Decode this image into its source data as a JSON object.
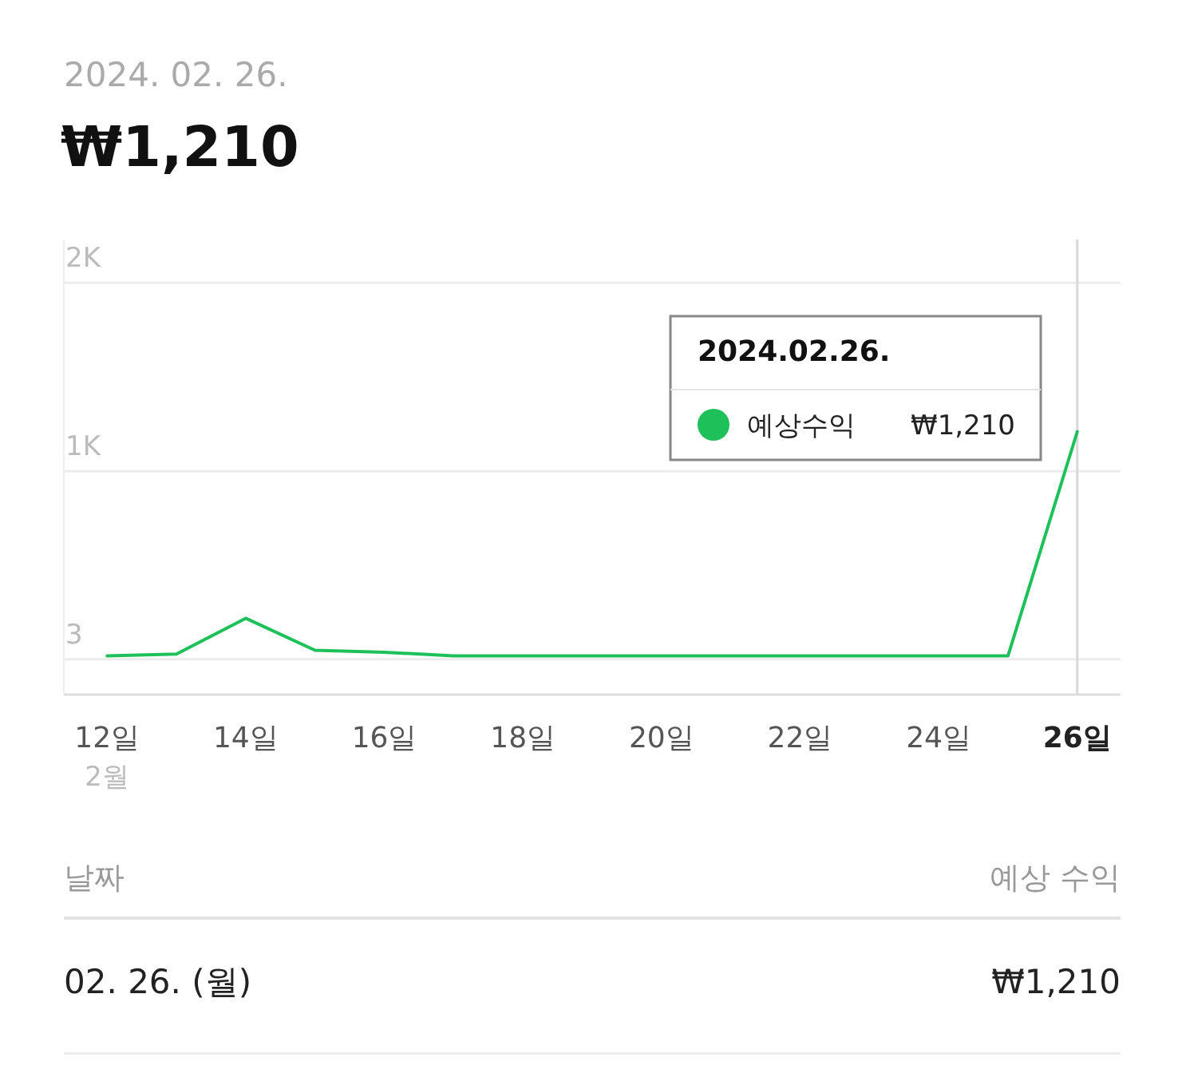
{
  "chart_data": {
    "type": "line",
    "title": "₩1,210",
    "subtitle": "2024. 02. 26.",
    "x": [
      "2024-02-12",
      "2024-02-13",
      "2024-02-14",
      "2024-02-15",
      "2024-02-16",
      "2024-02-17",
      "2024-02-18",
      "2024-02-19",
      "2024-02-20",
      "2024-02-21",
      "2024-02-22",
      "2024-02-23",
      "2024-02-24",
      "2024-02-25",
      "2024-02-26"
    ],
    "series": [
      {
        "name": "예상수익",
        "color": "#1ec05a",
        "values": [
          20,
          30,
          220,
          50,
          40,
          20,
          20,
          20,
          20,
          20,
          20,
          20,
          20,
          20,
          1210
        ]
      }
    ],
    "xlim": [
      "2024-02-11T09:00",
      "2024-02-26T15:00"
    ],
    "xticks": [
      {
        "value": "2024-02-12",
        "label": "12일"
      },
      {
        "value": "2024-02-14",
        "label": "14일"
      },
      {
        "value": "2024-02-16",
        "label": "16일"
      },
      {
        "value": "2024-02-18",
        "label": "18일"
      },
      {
        "value": "2024-02-20",
        "label": "20일"
      },
      {
        "value": "2024-02-22",
        "label": "22일"
      },
      {
        "value": "2024-02-24",
        "label": "24일"
      },
      {
        "value": "2024-02-26",
        "label": "26일"
      }
    ],
    "ylim": [
      -185,
      2230
    ],
    "yticks": [
      {
        "value": 3,
        "label": "3"
      },
      {
        "value": 1000,
        "label": "1K"
      },
      {
        "value": 2000,
        "label": "2K"
      }
    ],
    "grid": "y",
    "legend": "top right",
    "marker": "none",
    "line_style": "solid",
    "ref_lines": [
      {
        "axis": "x",
        "value": "2024-02-26",
        "color": "#d9d9d9"
      }
    ],
    "annotations": [
      "2024.02.26.",
      "₩1,210",
      "2월",
      "날짜",
      "예상 수익",
      "02. 26. (월)",
      "₩1,210"
    ]
  }
}
